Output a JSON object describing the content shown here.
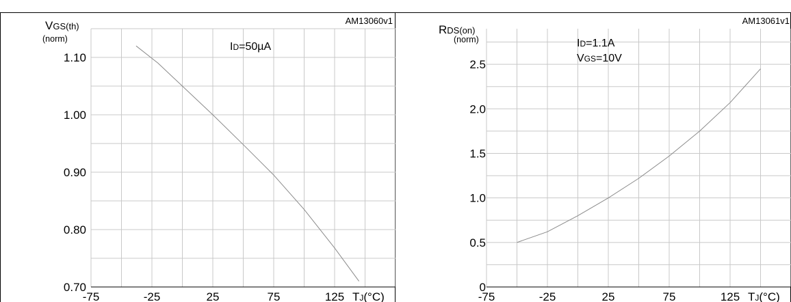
{
  "chart_data": [
    {
      "type": "line",
      "ref": "AM13060v1",
      "ylabel_main": "V",
      "ylabel_sub": "GS(th)",
      "ylabel_unit": "(norm)",
      "xlabel_main": "T",
      "xlabel_sub": "J",
      "xlabel_unit": "(°C)",
      "condition": {
        "main": "I",
        "sub": "D",
        "rest": "=50µA"
      },
      "xlim": [
        -75,
        175
      ],
      "ylim": [
        0.7,
        1.15
      ],
      "xticks": [
        -75,
        -25,
        25,
        75,
        125
      ],
      "xtick_labels": [
        "-75",
        "-25",
        "25",
        "75",
        "125"
      ],
      "yticks": [
        0.7,
        0.8,
        0.9,
        1.0,
        1.1
      ],
      "ytick_labels": [
        "0.70",
        "0.80",
        "0.90",
        "1.00",
        "1.10"
      ],
      "x": [
        -38,
        -20,
        0,
        25,
        50,
        75,
        100,
        125,
        145
      ],
      "y": [
        1.12,
        1.09,
        1.05,
        1.0,
        0.948,
        0.895,
        0.835,
        0.768,
        0.71
      ]
    },
    {
      "type": "line",
      "ref": "AM13061v1",
      "ylabel_main": "R",
      "ylabel_sub": "DS(on)",
      "ylabel_unit": "(norm)",
      "xlabel_main": "T",
      "xlabel_sub": "J",
      "xlabel_unit": "(°C)",
      "condition": {
        "main": "I",
        "sub": "D",
        "rest": "=1.1A"
      },
      "condition2": {
        "main": "V",
        "sub": "GS",
        "rest": "=10V"
      },
      "xlim": [
        -75,
        175
      ],
      "ylim": [
        0,
        2.9
      ],
      "xticks": [
        -75,
        -25,
        25,
        75,
        125
      ],
      "xtick_labels": [
        "-75",
        "-25",
        "25",
        "75",
        "125"
      ],
      "yticks": [
        0,
        0.5,
        1.0,
        1.5,
        2.0,
        2.5
      ],
      "ytick_labels": [
        "0",
        "0.5",
        "1.0",
        "1.5",
        "2.0",
        "2.5"
      ],
      "x": [
        -50,
        -25,
        0,
        25,
        50,
        75,
        100,
        125,
        150
      ],
      "y": [
        0.5,
        0.62,
        0.8,
        1.0,
        1.22,
        1.47,
        1.75,
        2.07,
        2.45
      ]
    }
  ]
}
